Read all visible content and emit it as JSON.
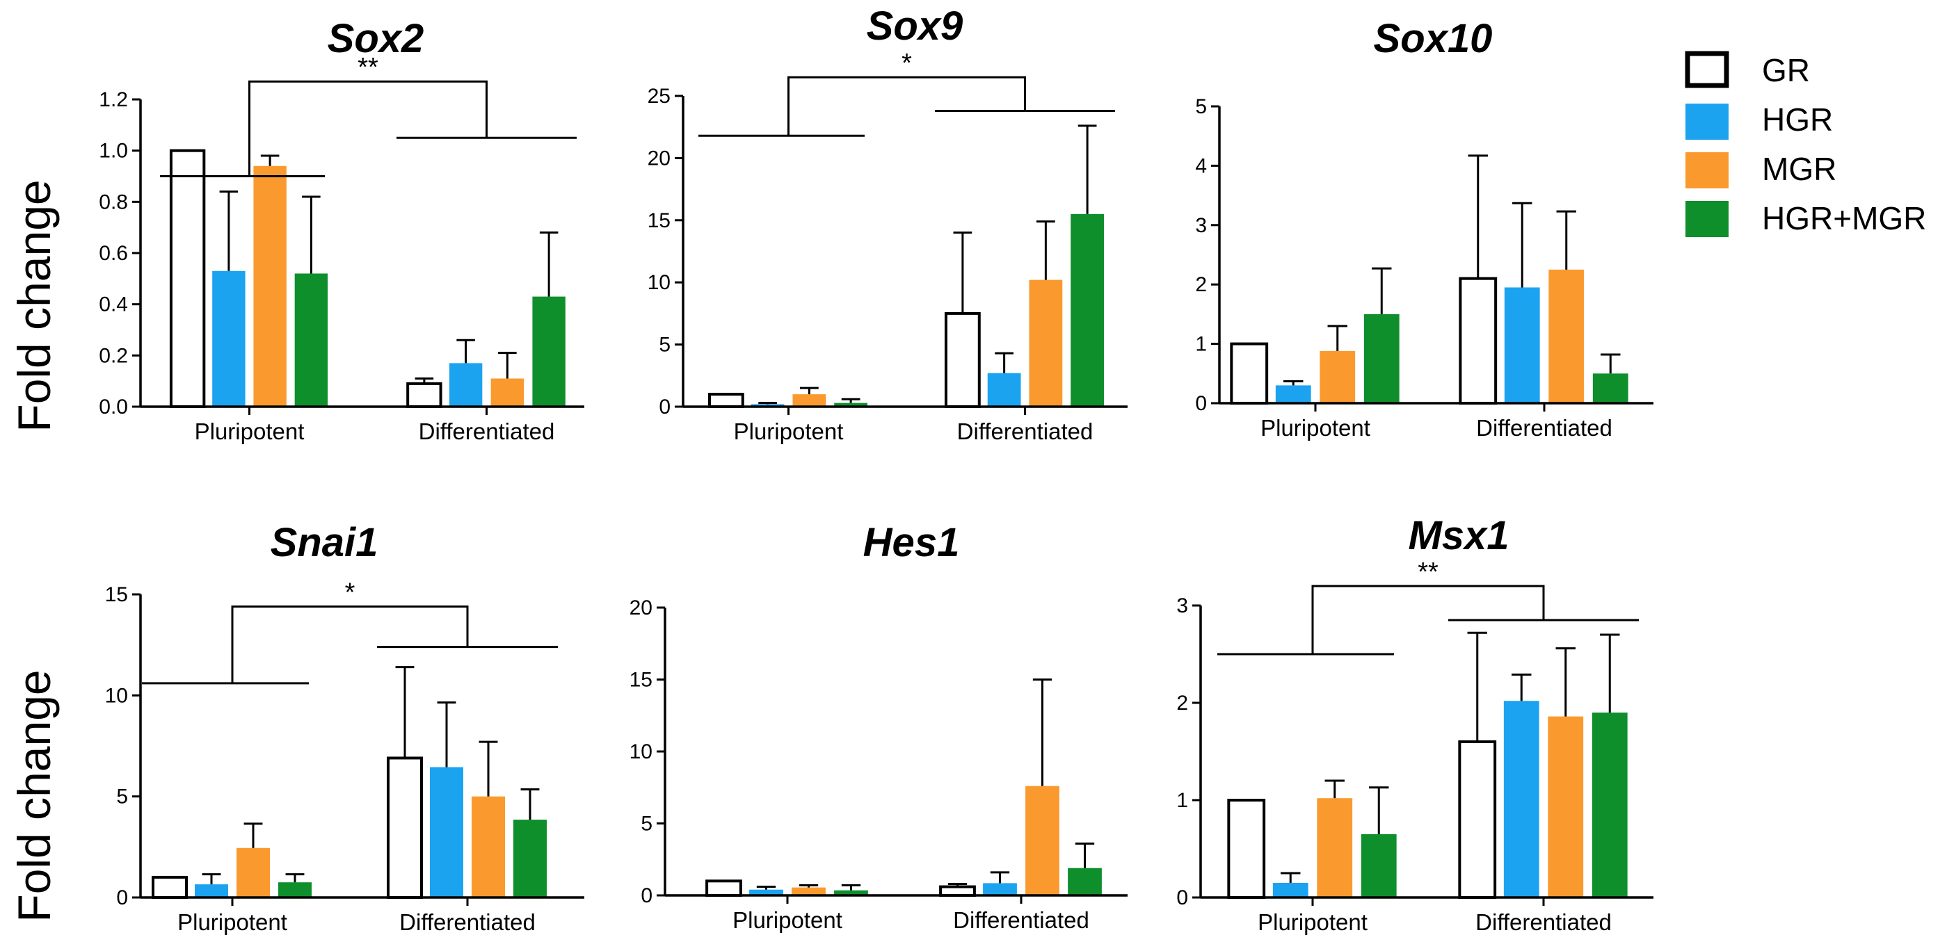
{
  "legend": [
    {
      "label": "GR",
      "color": "#ffffff"
    },
    {
      "label": "HGR",
      "color": "#1ca3f0"
    },
    {
      "label": "MGR",
      "color": "#fa9a2e"
    },
    {
      "label": "HGR+MGR",
      "color": "#0f8f2c"
    }
  ],
  "ylabels": [
    "Fold change",
    "Fold change"
  ],
  "chart_data": [
    {
      "type": "bar",
      "title": "Sox2",
      "ylabel": "Fold change",
      "categories": [
        "Pluripotent",
        "Differentiated"
      ],
      "ylim": [
        0,
        1.2
      ],
      "yticks": [
        "0.0",
        "0.2",
        "0.4",
        "0.6",
        "0.8",
        "1.0",
        "1.2"
      ],
      "series": [
        {
          "name": "GR",
          "values": [
            1.0,
            0.09
          ],
          "errors": [
            0,
            0.02
          ]
        },
        {
          "name": "HGR",
          "values": [
            0.53,
            0.17
          ],
          "errors": [
            0.31,
            0.09
          ]
        },
        {
          "name": "MGR",
          "values": [
            0.94,
            0.11
          ],
          "errors": [
            0.04,
            0.1
          ]
        },
        {
          "name": "HGR+MGR",
          "values": [
            0.52,
            0.43
          ],
          "errors": [
            0.3,
            0.25
          ]
        }
      ],
      "significance": "**",
      "sig_levels": [
        0.9,
        1.05,
        1.27
      ]
    },
    {
      "type": "bar",
      "title": "Sox9",
      "ylabel": "",
      "categories": [
        "Pluripotent",
        "Differentiated"
      ],
      "ylim": [
        0,
        25
      ],
      "yticks": [
        "0",
        "5",
        "10",
        "15",
        "20",
        "25"
      ],
      "series": [
        {
          "name": "GR",
          "values": [
            1.0,
            7.5
          ],
          "errors": [
            0,
            6.5
          ]
        },
        {
          "name": "HGR",
          "values": [
            0.2,
            2.7
          ],
          "errors": [
            0.1,
            1.6
          ]
        },
        {
          "name": "MGR",
          "values": [
            1.0,
            10.2
          ],
          "errors": [
            0.5,
            4.7
          ]
        },
        {
          "name": "HGR+MGR",
          "values": [
            0.3,
            15.5
          ],
          "errors": [
            0.3,
            7.1
          ]
        }
      ],
      "significance": "*",
      "sig_levels": [
        21.8,
        23.8,
        26.5
      ]
    },
    {
      "type": "bar",
      "title": "Sox10",
      "ylabel": "",
      "categories": [
        "Pluripotent",
        "Differentiated"
      ],
      "ylim": [
        0,
        5
      ],
      "yticks": [
        "0",
        "1",
        "2",
        "3",
        "4",
        "5"
      ],
      "series": [
        {
          "name": "GR",
          "values": [
            1.0,
            2.1
          ],
          "errors": [
            0,
            2.07
          ]
        },
        {
          "name": "HGR",
          "values": [
            0.3,
            1.95
          ],
          "errors": [
            0.07,
            1.42
          ]
        },
        {
          "name": "MGR",
          "values": [
            0.88,
            2.25
          ],
          "errors": [
            0.42,
            0.98
          ]
        },
        {
          "name": "HGR+MGR",
          "values": [
            1.5,
            0.5
          ],
          "errors": [
            0.77,
            0.32
          ]
        }
      ],
      "significance": "",
      "sig_levels": []
    },
    {
      "type": "bar",
      "title": "Snai1",
      "ylabel": "Fold change",
      "categories": [
        "Pluripotent",
        "Differentiated"
      ],
      "ylim": [
        0,
        15
      ],
      "yticks": [
        "0",
        "5",
        "10",
        "15"
      ],
      "series": [
        {
          "name": "GR",
          "values": [
            1.0,
            6.9
          ],
          "errors": [
            0,
            4.5
          ]
        },
        {
          "name": "HGR",
          "values": [
            0.65,
            6.45
          ],
          "errors": [
            0.5,
            3.2
          ]
        },
        {
          "name": "MGR",
          "values": [
            2.45,
            5.0
          ],
          "errors": [
            1.2,
            2.7
          ]
        },
        {
          "name": "HGR+MGR",
          "values": [
            0.75,
            3.85
          ],
          "errors": [
            0.4,
            1.5
          ]
        }
      ],
      "significance": "*",
      "sig_levels": [
        10.6,
        12.4,
        14.4
      ]
    },
    {
      "type": "bar",
      "title": "Hes1",
      "ylabel": "",
      "categories": [
        "Pluripotent",
        "Differentiated"
      ],
      "ylim": [
        0,
        20
      ],
      "yticks": [
        "0",
        "5",
        "10",
        "15",
        "20"
      ],
      "series": [
        {
          "name": "GR",
          "values": [
            1.0,
            0.6
          ],
          "errors": [
            0,
            0.2
          ]
        },
        {
          "name": "HGR",
          "values": [
            0.4,
            0.85
          ],
          "errors": [
            0.2,
            0.75
          ]
        },
        {
          "name": "MGR",
          "values": [
            0.55,
            7.6
          ],
          "errors": [
            0.15,
            7.4
          ]
        },
        {
          "name": "HGR+MGR",
          "values": [
            0.35,
            1.9
          ],
          "errors": [
            0.35,
            1.7
          ]
        }
      ],
      "significance": "",
      "sig_levels": []
    },
    {
      "type": "bar",
      "title": "Msx1",
      "ylabel": "",
      "categories": [
        "Pluripotent",
        "Differentiated"
      ],
      "ylim": [
        0,
        3
      ],
      "yticks": [
        "0",
        "1",
        "2",
        "3"
      ],
      "series": [
        {
          "name": "GR",
          "values": [
            1.0,
            1.6
          ],
          "errors": [
            0,
            1.12
          ]
        },
        {
          "name": "HGR",
          "values": [
            0.15,
            2.02
          ],
          "errors": [
            0.1,
            0.27
          ]
        },
        {
          "name": "MGR",
          "values": [
            1.02,
            1.86
          ],
          "errors": [
            0.18,
            0.7
          ]
        },
        {
          "name": "HGR+MGR",
          "values": [
            0.65,
            1.9
          ],
          "errors": [
            0.48,
            0.8
          ]
        }
      ],
      "significance": "**",
      "sig_levels": [
        2.5,
        2.85,
        3.2
      ]
    }
  ]
}
